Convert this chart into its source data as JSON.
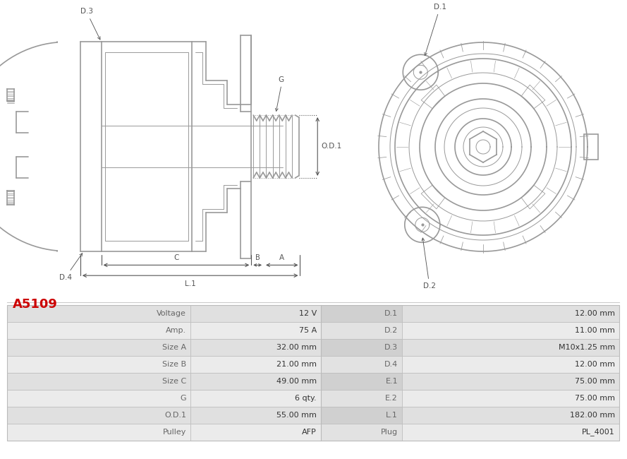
{
  "title": "A5109",
  "title_color": "#cc0000",
  "bg_color": "#ffffff",
  "table_rows": [
    [
      "Voltage",
      "12 V",
      "D.1",
      "12.00 mm"
    ],
    [
      "Amp.",
      "75 A",
      "D.2",
      "11.00 mm"
    ],
    [
      "Size A",
      "32.00 mm",
      "D.3",
      "M10x1.25 mm"
    ],
    [
      "Size B",
      "21.00 mm",
      "D.4",
      "12.00 mm"
    ],
    [
      "Size C",
      "49.00 mm",
      "E.1",
      "75.00 mm"
    ],
    [
      "G",
      "6 qty.",
      "E.2",
      "75.00 mm"
    ],
    [
      "O.D.1",
      "55.00 mm",
      "L.1",
      "182.00 mm"
    ],
    [
      "Pulley",
      "AFP",
      "Plug",
      "PL_4001"
    ]
  ],
  "lc": "#999999",
  "lc2": "#bbbbbb",
  "dc": "#555555",
  "lw_main": 1.2,
  "lw_thin": 0.7,
  "text_color": "#666666",
  "font_size": 8.0
}
